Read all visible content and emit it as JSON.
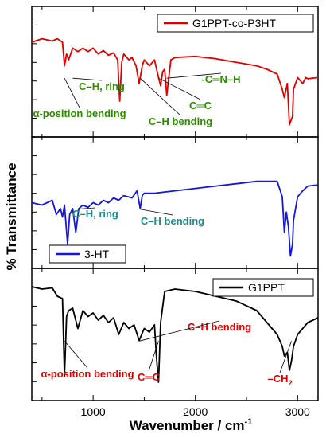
{
  "chart_data": [
    {
      "type": "line",
      "panel": "top",
      "series": [
        {
          "name": "G1PPT-co-P3HT",
          "color": "#e00000",
          "points": [
            [
              400,
              0.25
            ],
            [
              500,
              0.22
            ],
            [
              600,
              0.24
            ],
            [
              650,
              0.22
            ],
            [
              700,
              0.25
            ],
            [
              720,
              0.45
            ],
            [
              740,
              0.35
            ],
            [
              760,
              0.4
            ],
            [
              800,
              0.3
            ],
            [
              850,
              0.33
            ],
            [
              900,
              0.3
            ],
            [
              950,
              0.33
            ],
            [
              1000,
              0.3
            ],
            [
              1050,
              0.35
            ],
            [
              1100,
              0.32
            ],
            [
              1150,
              0.36
            ],
            [
              1200,
              0.34
            ],
            [
              1240,
              0.4
            ],
            [
              1260,
              0.75
            ],
            [
              1280,
              0.42
            ],
            [
              1300,
              0.35
            ],
            [
              1350,
              0.4
            ],
            [
              1380,
              0.38
            ],
            [
              1420,
              0.45
            ],
            [
              1450,
              0.6
            ],
            [
              1480,
              0.45
            ],
            [
              1500,
              0.4
            ],
            [
              1550,
              0.45
            ],
            [
              1600,
              0.4
            ],
            [
              1640,
              0.55
            ],
            [
              1660,
              0.62
            ],
            [
              1680,
              0.5
            ],
            [
              1700,
              0.48
            ],
            [
              1720,
              0.7
            ],
            [
              1740,
              0.55
            ],
            [
              1760,
              0.4
            ],
            [
              1800,
              0.38
            ],
            [
              2000,
              0.37
            ],
            [
              2200,
              0.39
            ],
            [
              2400,
              0.42
            ],
            [
              2600,
              0.45
            ],
            [
              2700,
              0.48
            ],
            [
              2800,
              0.52
            ],
            [
              2850,
              0.65
            ],
            [
              2870,
              0.72
            ],
            [
              2900,
              0.6
            ],
            [
              2920,
              0.95
            ],
            [
              2950,
              0.88
            ],
            [
              2960,
              0.65
            ],
            [
              3000,
              0.55
            ],
            [
              3050,
              0.6
            ],
            [
              3080,
              0.55
            ],
            [
              3100,
              0.56
            ],
            [
              3200,
              0.55
            ]
          ]
        }
      ],
      "annotations": [
        {
          "text": "α-position bending",
          "color": "#2e8b00",
          "wavenumber": 720
        },
        {
          "text": "C–H, ring",
          "color": "#2e8b00",
          "wavenumber": 800
        },
        {
          "text": "C–H bending",
          "color": "#2e8b00",
          "wavenumber": 1460
        },
        {
          "text": "C═C",
          "color": "#2e8b00",
          "wavenumber": 1640
        },
        {
          "text": "-C═N–H",
          "color": "#2e8b00",
          "wavenumber": 1720
        }
      ]
    },
    {
      "type": "line",
      "panel": "middle",
      "series": [
        {
          "name": "3-HT",
          "color": "#1515e0",
          "points": [
            [
              400,
              0.5
            ],
            [
              500,
              0.52
            ],
            [
              600,
              0.48
            ],
            [
              640,
              0.6
            ],
            [
              680,
              0.55
            ],
            [
              700,
              0.62
            ],
            [
              720,
              0.52
            ],
            [
              750,
              0.85
            ],
            [
              770,
              0.6
            ],
            [
              800,
              0.55
            ],
            [
              830,
              0.75
            ],
            [
              860,
              0.55
            ],
            [
              900,
              0.52
            ],
            [
              950,
              0.54
            ],
            [
              1000,
              0.5
            ],
            [
              1050,
              0.52
            ],
            [
              1100,
              0.48
            ],
            [
              1150,
              0.5
            ],
            [
              1200,
              0.46
            ],
            [
              1250,
              0.48
            ],
            [
              1300,
              0.44
            ],
            [
              1380,
              0.46
            ],
            [
              1430,
              0.4
            ],
            [
              1460,
              0.55
            ],
            [
              1480,
              0.44
            ],
            [
              1500,
              0.42
            ],
            [
              1600,
              0.42
            ],
            [
              1800,
              0.4
            ],
            [
              2000,
              0.38
            ],
            [
              2200,
              0.36
            ],
            [
              2400,
              0.34
            ],
            [
              2600,
              0.32
            ],
            [
              2700,
              0.32
            ],
            [
              2800,
              0.32
            ],
            [
              2850,
              0.45
            ],
            [
              2870,
              0.75
            ],
            [
              2890,
              0.58
            ],
            [
              2910,
              0.7
            ],
            [
              2930,
              0.95
            ],
            [
              2950,
              0.85
            ],
            [
              2960,
              0.65
            ],
            [
              3000,
              0.45
            ],
            [
              3050,
              0.4
            ],
            [
              3100,
              0.36
            ],
            [
              3200,
              0.35
            ]
          ]
        }
      ],
      "annotations": [
        {
          "text": "C–H, ring",
          "color": "#1a8a8a",
          "wavenumber": 820
        },
        {
          "text": "C–H bending",
          "color": "#1a8a8a",
          "wavenumber": 1460
        }
      ]
    },
    {
      "type": "line",
      "panel": "bottom",
      "series": [
        {
          "name": "G1PPT",
          "color": "#000000",
          "points": [
            [
              400,
              0.1
            ],
            [
              500,
              0.12
            ],
            [
              600,
              0.11
            ],
            [
              650,
              0.18
            ],
            [
              700,
              0.2
            ],
            [
              720,
              0.85
            ],
            [
              740,
              0.35
            ],
            [
              760,
              0.3
            ],
            [
              800,
              0.28
            ],
            [
              850,
              0.45
            ],
            [
              900,
              0.3
            ],
            [
              950,
              0.35
            ],
            [
              1000,
              0.32
            ],
            [
              1050,
              0.38
            ],
            [
              1100,
              0.34
            ],
            [
              1150,
              0.4
            ],
            [
              1200,
              0.36
            ],
            [
              1250,
              0.5
            ],
            [
              1300,
              0.4
            ],
            [
              1350,
              0.45
            ],
            [
              1400,
              0.42
            ],
            [
              1450,
              0.55
            ],
            [
              1500,
              0.45
            ],
            [
              1550,
              0.48
            ],
            [
              1600,
              0.42
            ],
            [
              1620,
              0.7
            ],
            [
              1640,
              0.9
            ],
            [
              1660,
              0.4
            ],
            [
              1700,
              0.14
            ],
            [
              1800,
              0.12
            ],
            [
              2000,
              0.14
            ],
            [
              2200,
              0.18
            ],
            [
              2400,
              0.22
            ],
            [
              2600,
              0.3
            ],
            [
              2700,
              0.4
            ],
            [
              2800,
              0.5
            ],
            [
              2850,
              0.6
            ],
            [
              2870,
              0.68
            ],
            [
              2900,
              0.65
            ],
            [
              2920,
              0.8
            ],
            [
              2940,
              0.72
            ],
            [
              2960,
              0.6
            ],
            [
              3000,
              0.5
            ],
            [
              3050,
              0.45
            ],
            [
              3100,
              0.4
            ],
            [
              3150,
              0.38
            ],
            [
              3200,
              0.36
            ]
          ]
        }
      ],
      "annotations": [
        {
          "text": "α-position bending",
          "color": "#e00000",
          "wavenumber": 720
        },
        {
          "text": "C–H bending",
          "color": "#e00000",
          "wavenumber": 1450
        },
        {
          "text": "C═C",
          "color": "#e00000",
          "wavenumber": 1640
        },
        {
          "text": "–CH",
          "sub": "2",
          "color": "#e00000",
          "wavenumber": 2940
        }
      ]
    }
  ],
  "xlabel": "Wavenumber / cm",
  "xlabel_sup": "-1",
  "ylabel": "% Transmittance",
  "xlim": [
    400,
    3200
  ],
  "xticks": [
    1000,
    2000,
    3000
  ],
  "xtick_labels": [
    "1000",
    "2000",
    "3000"
  ]
}
